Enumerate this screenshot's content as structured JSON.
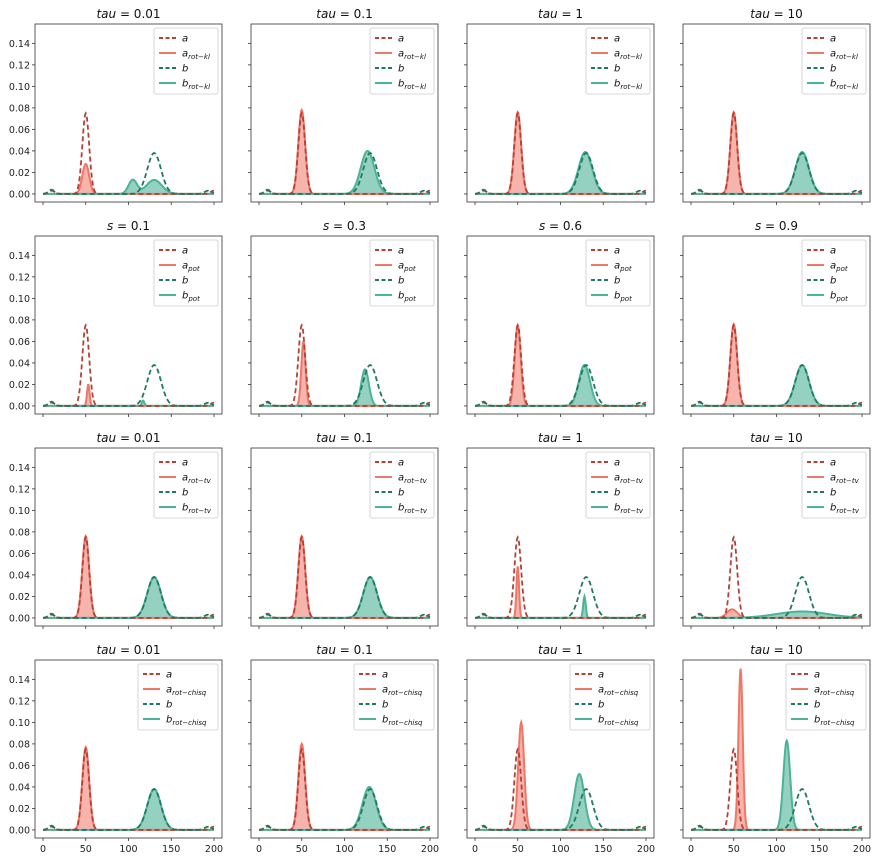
{
  "chart_data": {
    "type": "line",
    "layout": "4x4 grid of subplots, shared x and y axes",
    "x_range": [
      0,
      200
    ],
    "y_range": [
      0,
      0.15
    ],
    "x_ticks": [
      "0",
      "50",
      "100",
      "150",
      "200"
    ],
    "y_ticks": [
      "0.00",
      "0.02",
      "0.04",
      "0.06",
      "0.08",
      "0.10",
      "0.12",
      "0.14"
    ],
    "colors": {
      "a": "#b63f36",
      "a_fit": "#ef7767",
      "b": "#1f7a5f",
      "b_fit": "#4db396"
    },
    "source": {
      "a": {
        "peak_x": 50,
        "peak_y": 0.075,
        "width": 4
      },
      "b": {
        "peak_x": 130,
        "peak_y": 0.038,
        "width": 8
      }
    },
    "rows": [
      {
        "legend": {
          "a": "a",
          "a_fit": "a",
          "a_sub": "rot−kl",
          "b": "b",
          "b_fit": "b",
          "b_sub": "rot−kl"
        },
        "panels": [
          {
            "title_var": "tau",
            "title_val": "= 0.01"
          },
          {
            "title_var": "tau",
            "title_val": "= 0.1"
          },
          {
            "title_var": "tau",
            "title_val": "= 1"
          },
          {
            "title_var": "tau",
            "title_val": "= 10"
          }
        ]
      },
      {
        "legend": {
          "a": "a",
          "a_fit": "a",
          "a_sub": "pot",
          "b": "b",
          "b_fit": "b",
          "b_sub": "pot"
        },
        "panels": [
          {
            "title_var": "s",
            "title_val": "= 0.1"
          },
          {
            "title_var": "s",
            "title_val": "= 0.3"
          },
          {
            "title_var": "s",
            "title_val": "= 0.6"
          },
          {
            "title_var": "s",
            "title_val": "= 0.9"
          }
        ]
      },
      {
        "legend": {
          "a": "a",
          "a_fit": "a",
          "a_sub": "rot−tv",
          "b": "b",
          "b_fit": "b",
          "b_sub": "rot−tv"
        },
        "panels": [
          {
            "title_var": "tau",
            "title_val": "= 0.01"
          },
          {
            "title_var": "tau",
            "title_val": "= 0.1"
          },
          {
            "title_var": "tau",
            "title_val": "= 1"
          },
          {
            "title_var": "tau",
            "title_val": "= 10"
          }
        ]
      },
      {
        "legend": {
          "a": "a",
          "a_fit": "a",
          "a_sub": "rot−chisq",
          "b": "b",
          "b_fit": "b",
          "b_sub": "rot−chisq"
        },
        "panels": [
          {
            "title_var": "tau",
            "title_val": "= 0.01"
          },
          {
            "title_var": "tau",
            "title_val": "= 0.1"
          },
          {
            "title_var": "tau",
            "title_val": "= 1"
          },
          {
            "title_var": "tau",
            "title_val": "= 10"
          }
        ]
      }
    ],
    "fitted": [
      [
        {
          "a": [
            [
              50,
              0.028,
              4
            ]
          ],
          "b": [
            [
              105,
              0.013,
              5
            ],
            [
              130,
              0.013,
              9
            ]
          ]
        },
        {
          "a": [
            [
              50,
              0.078,
              4
            ]
          ],
          "b": [
            [
              127,
              0.04,
              8
            ]
          ]
        },
        {
          "a": [
            [
              50,
              0.076,
              4
            ]
          ],
          "b": [
            [
              129,
              0.039,
              8
            ]
          ]
        },
        {
          "a": [
            [
              50,
              0.076,
              4
            ]
          ],
          "b": [
            [
              130,
              0.039,
              8
            ]
          ]
        }
      ],
      [
        {
          "a": [
            [
              53,
              0.02,
              1.5
            ]
          ],
          "b": [
            [
              117,
              0.005,
              1.5
            ]
          ]
        },
        {
          "a": [
            [
              52,
              0.06,
              2.5
            ]
          ],
          "b": [
            [
              124,
              0.034,
              4.5
            ]
          ]
        },
        {
          "a": [
            [
              50,
              0.075,
              3.5
            ]
          ],
          "b": [
            [
              128,
              0.038,
              6.5
            ]
          ]
        },
        {
          "a": [
            [
              50,
              0.076,
              4
            ]
          ],
          "b": [
            [
              130,
              0.038,
              8
            ]
          ]
        }
      ],
      [
        {
          "a": [
            [
              50,
              0.076,
              4
            ]
          ],
          "b": [
            [
              130,
              0.038,
              8
            ]
          ]
        },
        {
          "a": [
            [
              50,
              0.076,
              4
            ]
          ],
          "b": [
            [
              130,
              0.038,
              8
            ]
          ]
        },
        {
          "a": [
            [
              50,
              0.048,
              1.5
            ]
          ],
          "b": [
            [
              128,
              0.02,
              1.5
            ]
          ]
        },
        {
          "a": [
            [
              48,
              0.008,
              6
            ]
          ],
          "b": [
            [
              130,
              0.006,
              30
            ]
          ]
        }
      ],
      [
        {
          "a": [
            [
              50,
              0.077,
              4
            ]
          ],
          "b": [
            [
              130,
              0.038,
              8
            ]
          ]
        },
        {
          "a": [
            [
              50,
              0.08,
              4
            ]
          ],
          "b": [
            [
              129,
              0.04,
              8
            ]
          ]
        },
        {
          "a": [
            [
              54,
              0.1,
              3.5
            ]
          ],
          "b": [
            [
              122,
              0.052,
              6
            ]
          ]
        },
        {
          "a": [
            [
              58,
              0.15,
              2.5
            ]
          ],
          "b": [
            [
              112,
              0.083,
              4
            ]
          ]
        }
      ]
    ]
  }
}
